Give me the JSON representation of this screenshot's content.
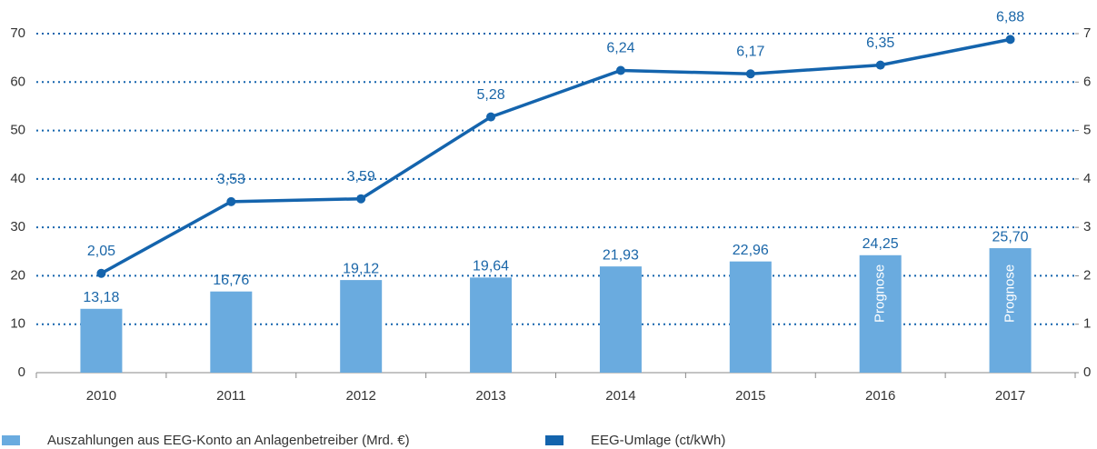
{
  "chart_data": {
    "type": "combo",
    "categories": [
      "2010",
      "2011",
      "2012",
      "2013",
      "2014",
      "2015",
      "2016",
      "2017"
    ],
    "series": [
      {
        "name": "Auszahlungen aus EEG-Konto an Anlagenbetreiber (Mrd. €)",
        "type": "bar",
        "color": "#6aabdf",
        "values": [
          13.18,
          16.76,
          19.12,
          19.64,
          21.93,
          22.96,
          24.25,
          25.7
        ],
        "value_labels": [
          "13,18",
          "16,76",
          "19,12",
          "19,64",
          "21,93",
          "22,96",
          "24,25",
          "25,70"
        ]
      },
      {
        "name": "EEG-Umlage (ct/kWh)",
        "type": "line",
        "axis": "y2",
        "color": "#1464ad",
        "values": [
          2.05,
          3.53,
          3.59,
          5.28,
          6.24,
          6.17,
          6.35,
          6.88
        ],
        "value_labels": [
          "2,05",
          "3,53",
          "3,59",
          "5,28",
          "6,24",
          "6,17",
          "6,35",
          "6,88"
        ]
      }
    ],
    "annotations": [
      {
        "text": "Prognose",
        "category": "2016"
      },
      {
        "text": "Prognose",
        "category": "2017"
      }
    ],
    "ylim": [
      0,
      70
    ],
    "yticks": [
      0,
      10,
      20,
      30,
      40,
      50,
      60,
      70
    ],
    "y2lim": [
      0,
      7
    ],
    "y2ticks": [
      0,
      1,
      2,
      3,
      4,
      5,
      6,
      7
    ],
    "grid": true
  }
}
